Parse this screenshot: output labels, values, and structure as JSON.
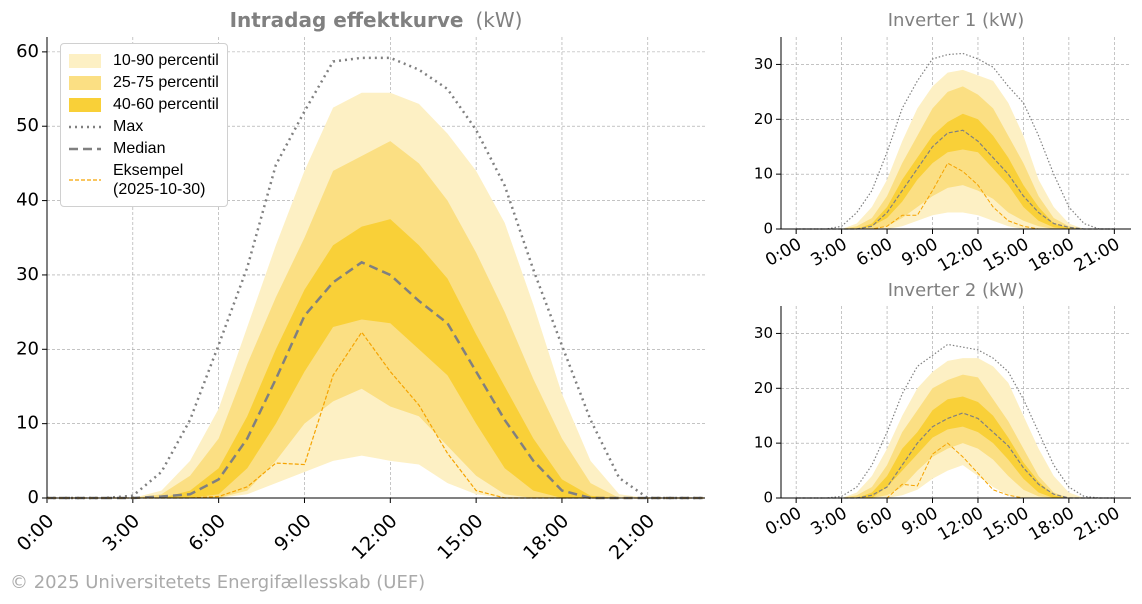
{
  "chart_data": [
    {
      "type": "line",
      "title": "Intradag effektkurve",
      "title_unit": "(kW)",
      "legend": "upper left",
      "grid": true,
      "x": [
        0,
        1,
        2,
        3,
        4,
        5,
        6,
        7,
        8,
        9,
        10,
        11,
        12,
        13,
        14,
        15,
        16,
        17,
        18,
        19,
        20,
        21,
        22,
        23
      ],
      "xlim": [
        0,
        23
      ],
      "xticks": [
        {
          "value": 0,
          "label": "0:00"
        },
        {
          "value": 3,
          "label": "3:00"
        },
        {
          "value": 6,
          "label": "6:00"
        },
        {
          "value": 9,
          "label": "9:00"
        },
        {
          "value": 12,
          "label": "12:00"
        },
        {
          "value": 15,
          "label": "15:00"
        },
        {
          "value": 18,
          "label": "18:00"
        },
        {
          "value": 21,
          "label": "21:00"
        }
      ],
      "ylim": [
        0,
        62
      ],
      "yticks": [
        0,
        10,
        20,
        30,
        40,
        50,
        60
      ],
      "bands": [
        {
          "name": "10-90 percentil",
          "color": "#fdf0c4",
          "low": [
            0,
            0,
            0,
            0,
            0,
            0,
            0,
            0.5,
            2,
            3.5,
            5,
            5.7,
            5,
            4.5,
            2,
            0.5,
            0,
            0,
            0,
            0,
            0,
            0,
            0,
            0
          ],
          "high": [
            0,
            0,
            0,
            0,
            1,
            5,
            12,
            23,
            34,
            44,
            52.5,
            54.5,
            54.5,
            53,
            49,
            44,
            37,
            26,
            14,
            5,
            0.5,
            0,
            0,
            0
          ]
        },
        {
          "name": "25-75 percentil",
          "color": "#fbdf83",
          "low": [
            0,
            0,
            0,
            0,
            0,
            0,
            0,
            1,
            5,
            10,
            13,
            14.7,
            12.3,
            11,
            7,
            3,
            0.5,
            0,
            0,
            0,
            0,
            0,
            0,
            0
          ],
          "high": [
            0,
            0,
            0,
            0,
            0.5,
            3,
            8,
            18,
            27,
            35,
            44,
            46,
            48,
            45,
            40,
            33,
            25,
            16,
            8,
            2,
            0,
            0,
            0,
            0
          ]
        },
        {
          "name": "40-60 percentil",
          "color": "#f9d038",
          "low": [
            0,
            0,
            0,
            0,
            0,
            0,
            0.5,
            4,
            10,
            17,
            23,
            24,
            23.5,
            20,
            16.5,
            10,
            4,
            1,
            0,
            0,
            0,
            0,
            0,
            0
          ],
          "high": [
            0,
            0,
            0,
            0,
            0,
            1,
            4,
            11,
            20,
            28,
            34,
            36.5,
            37.5,
            34,
            29.5,
            22,
            15,
            8,
            2.5,
            0.3,
            0,
            0,
            0,
            0
          ]
        }
      ],
      "series": [
        {
          "name": "Max",
          "color": "#808080",
          "linestyle": "dotted",
          "linewidth": 2.5,
          "values": [
            0,
            0,
            0,
            0.3,
            3.5,
            10.5,
            20.6,
            31,
            44.8,
            52,
            58.7,
            59.2,
            59.2,
            57.6,
            55,
            49.5,
            42,
            30.7,
            20.5,
            10.5,
            2.7,
            0,
            0,
            0
          ]
        },
        {
          "name": "Median",
          "color": "#808080",
          "linestyle": "dashed",
          "linewidth": 2.5,
          "values": [
            0,
            0,
            0,
            0,
            0.2,
            0.5,
            2.5,
            8,
            16,
            24.5,
            29,
            31.7,
            30,
            26.5,
            23.5,
            17,
            10.5,
            5,
            1,
            0,
            0,
            0,
            0,
            0
          ]
        },
        {
          "name": "Eksempel\n(2025-10-30)",
          "color": "#f5a300",
          "linestyle": "dashed",
          "linewidth": 1.2,
          "values": [
            0,
            0,
            0,
            0,
            0,
            0,
            0.2,
            1.5,
            4.7,
            4.5,
            16.5,
            22.3,
            17,
            12.5,
            6,
            1,
            0,
            0,
            0,
            0,
            0,
            0,
            0,
            0
          ]
        }
      ]
    },
    {
      "type": "line",
      "title": "Inverter 1 (kW)",
      "grid": true,
      "x": [
        0,
        1,
        2,
        3,
        4,
        5,
        6,
        7,
        8,
        9,
        10,
        11,
        12,
        13,
        14,
        15,
        16,
        17,
        18,
        19,
        20,
        21
      ],
      "xlim": [
        -1,
        22.1
      ],
      "xticks": [
        {
          "value": 0,
          "label": "0:00"
        },
        {
          "value": 3,
          "label": "3:00"
        },
        {
          "value": 6,
          "label": "6:00"
        },
        {
          "value": 9,
          "label": "9:00"
        },
        {
          "value": 12,
          "label": "12:00"
        },
        {
          "value": 15,
          "label": "15:00"
        },
        {
          "value": 18,
          "label": "18:00"
        },
        {
          "value": 21,
          "label": "21:00"
        }
      ],
      "ylim": [
        0,
        35
      ],
      "yticks": [
        0,
        10,
        20,
        30
      ],
      "bands": [
        {
          "color": "#fdf0c4",
          "low": [
            0,
            0,
            0,
            0,
            0,
            0,
            0,
            0.5,
            1.5,
            2.5,
            3,
            3,
            2.5,
            1.5,
            0.5,
            0,
            0,
            0,
            0,
            0,
            0,
            0
          ],
          "high": [
            0,
            0,
            0,
            0,
            1,
            4,
            9,
            16,
            22,
            26,
            28.5,
            29,
            28,
            27,
            23,
            17,
            9,
            4,
            1,
            0,
            0,
            0
          ]
        },
        {
          "color": "#fbdf83",
          "low": [
            0,
            0,
            0,
            0,
            0,
            0,
            0.5,
            2,
            4,
            6,
            7.5,
            8,
            7,
            5.5,
            3,
            1.5,
            0.5,
            0,
            0,
            0,
            0,
            0
          ],
          "high": [
            0,
            0,
            0,
            0,
            0.5,
            2,
            6,
            12,
            17,
            22,
            25,
            26,
            24.5,
            22,
            17,
            12,
            6,
            2,
            0.5,
            0,
            0,
            0
          ]
        },
        {
          "color": "#f9d038",
          "low": [
            0,
            0,
            0,
            0,
            0,
            0.5,
            2,
            5,
            9,
            12,
            14,
            14.5,
            14,
            11,
            8,
            4,
            1.5,
            0.3,
            0,
            0,
            0,
            0
          ],
          "high": [
            0,
            0,
            0,
            0,
            0,
            1,
            4,
            9,
            13,
            17,
            19.5,
            21,
            20,
            17,
            13,
            8,
            4,
            1,
            0.2,
            0,
            0,
            0
          ]
        }
      ],
      "series": [
        {
          "color": "#808080",
          "linestyle": "dotted",
          "linewidth": 1.2,
          "values": [
            0,
            0,
            0,
            0.5,
            3,
            7,
            14,
            22,
            27,
            31,
            31.8,
            32,
            31,
            29.5,
            26,
            23,
            17,
            10,
            4,
            1,
            0,
            0
          ]
        },
        {
          "color": "#808080",
          "linestyle": "dashed",
          "linewidth": 1.2,
          "values": [
            0,
            0,
            0,
            0,
            0,
            0.5,
            3,
            7,
            11,
            15,
            17.5,
            18,
            16,
            13,
            10,
            6,
            3,
            1,
            0.3,
            0,
            0,
            0
          ]
        },
        {
          "color": "#f5a300",
          "linestyle": "dashed",
          "linewidth": 1,
          "values": [
            0,
            0,
            0,
            0,
            0,
            0,
            0.5,
            2.5,
            2.5,
            7,
            12,
            10.5,
            8,
            4,
            1.5,
            0.5,
            0,
            0,
            0,
            0,
            0,
            0
          ]
        }
      ]
    },
    {
      "type": "line",
      "title": "Inverter 2 (kW)",
      "grid": true,
      "x": [
        0,
        1,
        2,
        3,
        4,
        5,
        6,
        7,
        8,
        9,
        10,
        11,
        12,
        13,
        14,
        15,
        16,
        17,
        18,
        19,
        20,
        21
      ],
      "xlim": [
        -1,
        22.1
      ],
      "xticks": [
        {
          "value": 0,
          "label": "0:00"
        },
        {
          "value": 3,
          "label": "3:00"
        },
        {
          "value": 6,
          "label": "6:00"
        },
        {
          "value": 9,
          "label": "9:00"
        },
        {
          "value": 12,
          "label": "12:00"
        },
        {
          "value": 15,
          "label": "15:00"
        },
        {
          "value": 18,
          "label": "18:00"
        },
        {
          "value": 21,
          "label": "21:00"
        }
      ],
      "ylim": [
        0,
        35
      ],
      "yticks": [
        0,
        10,
        20,
        30
      ],
      "bands": [
        {
          "color": "#fdf0c4",
          "low": [
            0,
            0,
            0,
            0,
            0,
            0,
            0,
            0.5,
            1.5,
            3.5,
            5,
            6,
            4,
            2,
            0.5,
            0,
            0,
            0,
            0,
            0,
            0,
            0
          ],
          "high": [
            0,
            0,
            0,
            0,
            1,
            4,
            9,
            15,
            20,
            23,
            25,
            25.5,
            25.5,
            24,
            21,
            15,
            9,
            4,
            1,
            0,
            0,
            0
          ]
        },
        {
          "color": "#fbdf83",
          "low": [
            0,
            0,
            0,
            0,
            0,
            0,
            0.5,
            2,
            5,
            7.5,
            9,
            10,
            9,
            7,
            4,
            1.5,
            0.3,
            0,
            0,
            0,
            0,
            0
          ],
          "high": [
            0,
            0,
            0,
            0,
            0.5,
            2,
            6,
            12,
            16,
            20,
            21.5,
            22.5,
            22,
            18,
            14,
            9,
            4,
            1,
            0,
            0,
            0,
            0
          ]
        },
        {
          "color": "#f9d038",
          "low": [
            0,
            0,
            0,
            0,
            0,
            0,
            2,
            5,
            8,
            11,
            12.5,
            13,
            12,
            10,
            7,
            3.5,
            1,
            0,
            0,
            0,
            0,
            0
          ],
          "high": [
            0,
            0,
            0,
            0,
            0,
            1,
            4,
            9,
            12,
            16,
            18,
            18.5,
            17.5,
            15,
            11,
            6.5,
            3,
            0.5,
            0,
            0,
            0,
            0
          ]
        }
      ],
      "series": [
        {
          "color": "#808080",
          "linestyle": "dotted",
          "linewidth": 1.2,
          "values": [
            0,
            0,
            0,
            0.3,
            2,
            6,
            12,
            19,
            24,
            26,
            28,
            27.5,
            27,
            25.5,
            23,
            18,
            12,
            6,
            2,
            0.3,
            0,
            0
          ]
        },
        {
          "color": "#808080",
          "linestyle": "dashed",
          "linewidth": 1.2,
          "values": [
            0,
            0,
            0,
            0,
            0,
            0.5,
            2,
            6,
            10,
            13,
            14.5,
            15.5,
            14.5,
            12,
            9.5,
            5.5,
            2.5,
            0.7,
            0,
            0,
            0,
            0
          ]
        },
        {
          "color": "#f5a300",
          "linestyle": "dashed",
          "linewidth": 1,
          "values": [
            0,
            0,
            0,
            0,
            0,
            0,
            0,
            2.5,
            2.2,
            8,
            10,
            7.5,
            4.5,
            1.5,
            0.5,
            0,
            0,
            0,
            0,
            0,
            0,
            0
          ]
        }
      ]
    }
  ],
  "footer": "© 2025 Universitetets Energifællesskab (UEF)"
}
